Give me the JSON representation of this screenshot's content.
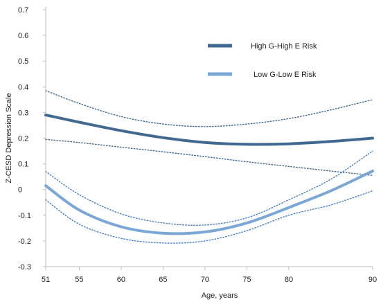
{
  "chart_data": {
    "type": "line",
    "xlabel": "Age, years",
    "ylabel": "Z-CESD Depression Scale",
    "xlim": [
      51,
      90
    ],
    "ylim": [
      -0.3,
      0.7
    ],
    "xticks": [
      51,
      55,
      60,
      65,
      70,
      75,
      80,
      90
    ],
    "yticks": [
      -0.3,
      -0.2,
      -0.1,
      0,
      0.1,
      0.2,
      0.3,
      0.4,
      0.5,
      0.6,
      0.7
    ],
    "ytick_labels": [
      "-0.3",
      "-0.2",
      "-0.1",
      "0",
      "0.1",
      "0.2",
      "0.3",
      "0.4",
      "0.5",
      "0.6",
      "0.7"
    ],
    "grid": false,
    "legend_position": "top-right",
    "series": [
      {
        "name": "High G-High E Risk",
        "color": "#41698f",
        "style": "solid",
        "x": [
          51,
          55,
          60,
          65,
          70,
          75,
          80,
          85,
          90
        ],
        "y": [
          0.29,
          0.262,
          0.229,
          0.202,
          0.183,
          0.176,
          0.178,
          0.187,
          0.2
        ]
      },
      {
        "name": "Low G-Low E Risk",
        "color": "#7ba7d6",
        "style": "solid",
        "x": [
          51,
          55,
          60,
          65,
          70,
          75,
          80,
          85,
          90
        ],
        "y": [
          0.015,
          -0.08,
          -0.145,
          -0.17,
          -0.165,
          -0.13,
          -0.07,
          -0.005,
          0.072
        ]
      },
      {
        "name": "",
        "color": "#41698f",
        "style": "dotted",
        "x": [
          51,
          55,
          60,
          65,
          70,
          75,
          80,
          85,
          90
        ],
        "y": [
          0.385,
          0.335,
          0.284,
          0.255,
          0.245,
          0.255,
          0.276,
          0.31,
          0.35
        ]
      },
      {
        "name": "",
        "color": "#41698f",
        "style": "dotted",
        "x": [
          51,
          55,
          60,
          65,
          70,
          75,
          80,
          85,
          90
        ],
        "y": [
          0.195,
          0.183,
          0.165,
          0.147,
          0.128,
          0.108,
          0.09,
          0.072,
          0.055
        ]
      },
      {
        "name": "",
        "color": "#4a7fc0",
        "style": "dotted",
        "x": [
          51,
          55,
          60,
          65,
          70,
          75,
          80,
          85,
          90
        ],
        "y": [
          0.07,
          -0.02,
          -0.095,
          -0.13,
          -0.138,
          -0.11,
          -0.04,
          0.04,
          0.15
        ]
      },
      {
        "name": "",
        "color": "#4a7fc0",
        "style": "dotted",
        "x": [
          51,
          55,
          60,
          65,
          70,
          75,
          80,
          85,
          90
        ],
        "y": [
          -0.04,
          -0.135,
          -0.19,
          -0.208,
          -0.2,
          -0.16,
          -0.1,
          -0.06,
          -0.005
        ]
      }
    ]
  }
}
